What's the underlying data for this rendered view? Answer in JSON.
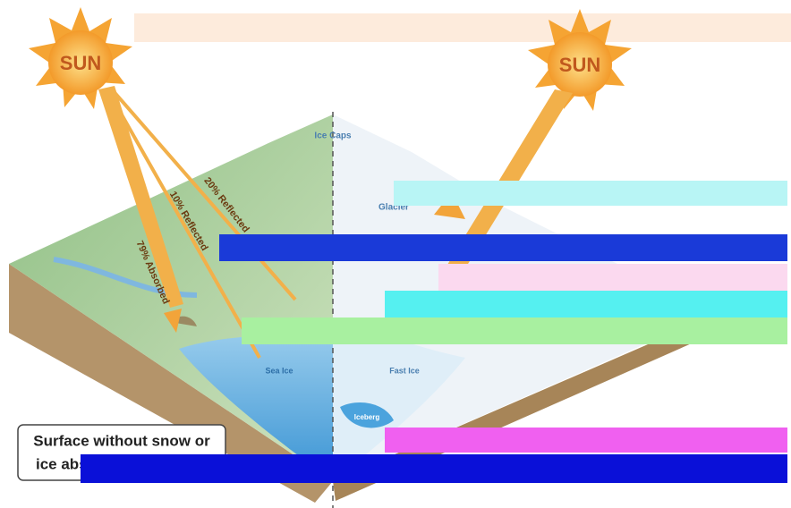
{
  "sun_left": "SUN",
  "sun_right": "SUN",
  "labels": {
    "ice_caps": "Ice Caps",
    "glacier": "Glacier",
    "sea_ice": "Sea Ice",
    "fast_ice": "Fast Ice",
    "iceberg": "Iceberg",
    "absorbed": "79% Absorbed",
    "reflected_10": "10% Reflected",
    "reflected_20": "20% Reflected"
  },
  "caption": {
    "line1": "Surface without snow or",
    "line2": "ice abso"
  }
}
